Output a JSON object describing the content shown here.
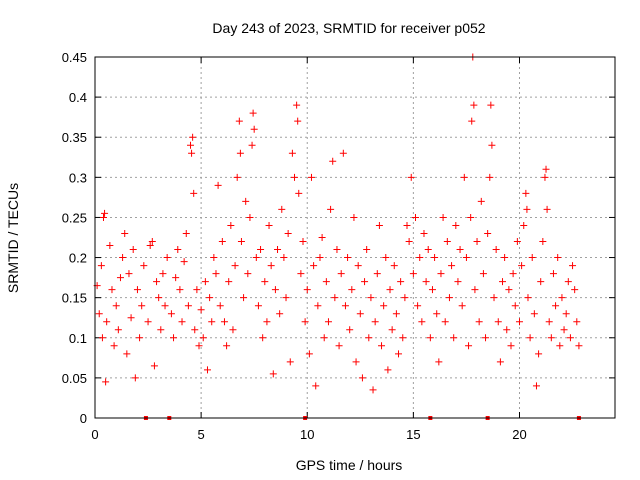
{
  "chart_data": {
    "type": "scatter",
    "title": "Day 243 of 2023, SRMTID for receiver p052",
    "xlabel": "GPS time / hours",
    "ylabel": "SRMTID / TECUs",
    "xlim": [
      0,
      24.5
    ],
    "ylim": [
      0,
      0.45
    ],
    "xticks": [
      0,
      5,
      10,
      15,
      20
    ],
    "yticks": [
      0,
      0.05,
      0.1,
      0.15,
      0.2,
      0.25,
      0.3,
      0.35,
      0.4,
      0.45
    ],
    "xtick_labels": [
      "0",
      "5",
      "10",
      "15",
      "20"
    ],
    "ytick_labels": [
      "0",
      "0.05",
      "0.1",
      "0.15",
      "0.2",
      "0.25",
      "0.3",
      "0.35",
      "0.4",
      "0.45"
    ],
    "grid": true,
    "marker": "+",
    "color": "#ff0000",
    "zero_marks_x": [
      2.4,
      3.5,
      9.9,
      15.8,
      18.5,
      22.8
    ],
    "series": [
      {
        "name": "SRMTID",
        "points": [
          [
            0.1,
            0.165
          ],
          [
            0.2,
            0.13
          ],
          [
            0.3,
            0.19
          ],
          [
            0.35,
            0.1
          ],
          [
            0.4,
            0.25
          ],
          [
            0.45,
            0.255
          ],
          [
            0.5,
            0.045
          ],
          [
            0.55,
            0.12
          ],
          [
            0.7,
            0.215
          ],
          [
            0.8,
            0.16
          ],
          [
            0.9,
            0.09
          ],
          [
            1.0,
            0.14
          ],
          [
            1.1,
            0.11
          ],
          [
            1.2,
            0.175
          ],
          [
            1.3,
            0.2
          ],
          [
            1.4,
            0.23
          ],
          [
            1.5,
            0.08
          ],
          [
            1.6,
            0.18
          ],
          [
            1.7,
            0.125
          ],
          [
            1.8,
            0.21
          ],
          [
            1.9,
            0.05
          ],
          [
            2.0,
            0.16
          ],
          [
            2.1,
            0.1
          ],
          [
            2.2,
            0.14
          ],
          [
            2.3,
            0.19
          ],
          [
            2.5,
            0.12
          ],
          [
            2.6,
            0.215
          ],
          [
            2.7,
            0.22
          ],
          [
            2.8,
            0.065
          ],
          [
            2.9,
            0.17
          ],
          [
            3.0,
            0.15
          ],
          [
            3.1,
            0.11
          ],
          [
            3.2,
            0.18
          ],
          [
            3.3,
            0.14
          ],
          [
            3.4,
            0.2
          ],
          [
            3.6,
            0.13
          ],
          [
            3.7,
            0.1
          ],
          [
            3.8,
            0.175
          ],
          [
            3.9,
            0.21
          ],
          [
            4.0,
            0.16
          ],
          [
            4.1,
            0.12
          ],
          [
            4.2,
            0.195
          ],
          [
            4.3,
            0.23
          ],
          [
            4.4,
            0.14
          ],
          [
            4.5,
            0.34
          ],
          [
            4.55,
            0.33
          ],
          [
            4.6,
            0.35
          ],
          [
            4.65,
            0.28
          ],
          [
            4.7,
            0.11
          ],
          [
            4.8,
            0.16
          ],
          [
            4.9,
            0.09
          ],
          [
            5.0,
            0.135
          ],
          [
            5.1,
            0.1
          ],
          [
            5.2,
            0.17
          ],
          [
            5.3,
            0.06
          ],
          [
            5.4,
            0.15
          ],
          [
            5.5,
            0.12
          ],
          [
            5.6,
            0.2
          ],
          [
            5.7,
            0.18
          ],
          [
            5.8,
            0.29
          ],
          [
            5.9,
            0.14
          ],
          [
            6.0,
            0.22
          ],
          [
            6.1,
            0.12
          ],
          [
            6.2,
            0.09
          ],
          [
            6.3,
            0.17
          ],
          [
            6.4,
            0.24
          ],
          [
            6.5,
            0.11
          ],
          [
            6.6,
            0.19
          ],
          [
            6.7,
            0.3
          ],
          [
            6.8,
            0.37
          ],
          [
            6.85,
            0.33
          ],
          [
            6.9,
            0.22
          ],
          [
            7.0,
            0.15
          ],
          [
            7.1,
            0.27
          ],
          [
            7.2,
            0.18
          ],
          [
            7.3,
            0.25
          ],
          [
            7.4,
            0.34
          ],
          [
            7.45,
            0.38
          ],
          [
            7.5,
            0.36
          ],
          [
            7.6,
            0.2
          ],
          [
            7.7,
            0.14
          ],
          [
            7.8,
            0.21
          ],
          [
            7.9,
            0.1
          ],
          [
            8.0,
            0.17
          ],
          [
            8.1,
            0.12
          ],
          [
            8.2,
            0.24
          ],
          [
            8.3,
            0.19
          ],
          [
            8.4,
            0.055
          ],
          [
            8.5,
            0.16
          ],
          [
            8.6,
            0.21
          ],
          [
            8.7,
            0.13
          ],
          [
            8.8,
            0.26
          ],
          [
            8.9,
            0.2
          ],
          [
            9.0,
            0.15
          ],
          [
            9.1,
            0.23
          ],
          [
            9.2,
            0.07
          ],
          [
            9.3,
            0.33
          ],
          [
            9.4,
            0.3
          ],
          [
            9.5,
            0.39
          ],
          [
            9.55,
            0.37
          ],
          [
            9.6,
            0.28
          ],
          [
            9.7,
            0.18
          ],
          [
            9.8,
            0.22
          ],
          [
            9.9,
            0.12
          ],
          [
            10.0,
            0.16
          ],
          [
            10.1,
            0.08
          ],
          [
            10.2,
            0.3
          ],
          [
            10.3,
            0.19
          ],
          [
            10.4,
            0.04
          ],
          [
            10.5,
            0.14
          ],
          [
            10.6,
            0.2
          ],
          [
            10.7,
            0.225
          ],
          [
            10.8,
            0.1
          ],
          [
            10.9,
            0.17
          ],
          [
            11.0,
            0.12
          ],
          [
            11.1,
            0.26
          ],
          [
            11.2,
            0.32
          ],
          [
            11.3,
            0.15
          ],
          [
            11.4,
            0.21
          ],
          [
            11.5,
            0.09
          ],
          [
            11.6,
            0.18
          ],
          [
            11.7,
            0.33
          ],
          [
            11.8,
            0.14
          ],
          [
            11.9,
            0.2
          ],
          [
            12.0,
            0.11
          ],
          [
            12.1,
            0.16
          ],
          [
            12.2,
            0.25
          ],
          [
            12.3,
            0.07
          ],
          [
            12.4,
            0.19
          ],
          [
            12.5,
            0.13
          ],
          [
            12.6,
            0.05
          ],
          [
            12.7,
            0.17
          ],
          [
            12.8,
            0.21
          ],
          [
            12.9,
            0.1
          ],
          [
            13.0,
            0.15
          ],
          [
            13.1,
            0.035
          ],
          [
            13.2,
            0.12
          ],
          [
            13.3,
            0.18
          ],
          [
            13.4,
            0.24
          ],
          [
            13.5,
            0.09
          ],
          [
            13.6,
            0.14
          ],
          [
            13.7,
            0.2
          ],
          [
            13.8,
            0.06
          ],
          [
            13.9,
            0.16
          ],
          [
            14.0,
            0.11
          ],
          [
            14.1,
            0.19
          ],
          [
            14.2,
            0.13
          ],
          [
            14.3,
            0.08
          ],
          [
            14.4,
            0.17
          ],
          [
            14.5,
            0.1
          ],
          [
            14.6,
            0.15
          ],
          [
            14.7,
            0.24
          ],
          [
            14.8,
            0.22
          ],
          [
            14.9,
            0.3
          ],
          [
            15.0,
            0.18
          ],
          [
            15.1,
            0.25
          ],
          [
            15.2,
            0.14
          ],
          [
            15.3,
            0.2
          ],
          [
            15.4,
            0.12
          ],
          [
            15.5,
            0.23
          ],
          [
            15.6,
            0.17
          ],
          [
            15.7,
            0.21
          ],
          [
            15.8,
            0.1
          ],
          [
            15.9,
            0.16
          ],
          [
            16.0,
            0.2
          ],
          [
            16.1,
            0.13
          ],
          [
            16.2,
            0.07
          ],
          [
            16.3,
            0.18
          ],
          [
            16.4,
            0.25
          ],
          [
            16.5,
            0.12
          ],
          [
            16.6,
            0.22
          ],
          [
            16.7,
            0.15
          ],
          [
            16.8,
            0.19
          ],
          [
            16.9,
            0.1
          ],
          [
            17.0,
            0.24
          ],
          [
            17.1,
            0.17
          ],
          [
            17.2,
            0.21
          ],
          [
            17.3,
            0.14
          ],
          [
            17.4,
            0.3
          ],
          [
            17.5,
            0.2
          ],
          [
            17.6,
            0.09
          ],
          [
            17.7,
            0.25
          ],
          [
            17.75,
            0.37
          ],
          [
            17.8,
            0.45
          ],
          [
            17.85,
            0.39
          ],
          [
            17.9,
            0.16
          ],
          [
            18.0,
            0.22
          ],
          [
            18.1,
            0.12
          ],
          [
            18.2,
            0.27
          ],
          [
            18.3,
            0.18
          ],
          [
            18.4,
            0.1
          ],
          [
            18.5,
            0.23
          ],
          [
            18.6,
            0.3
          ],
          [
            18.65,
            0.39
          ],
          [
            18.7,
            0.34
          ],
          [
            18.8,
            0.15
          ],
          [
            18.9,
            0.21
          ],
          [
            19.0,
            0.12
          ],
          [
            19.1,
            0.07
          ],
          [
            19.2,
            0.17
          ],
          [
            19.3,
            0.2
          ],
          [
            19.4,
            0.11
          ],
          [
            19.5,
            0.16
          ],
          [
            19.6,
            0.09
          ],
          [
            19.7,
            0.18
          ],
          [
            19.8,
            0.14
          ],
          [
            19.9,
            0.22
          ],
          [
            20.0,
            0.12
          ],
          [
            20.1,
            0.19
          ],
          [
            20.2,
            0.24
          ],
          [
            20.3,
            0.28
          ],
          [
            20.35,
            0.26
          ],
          [
            20.4,
            0.15
          ],
          [
            20.5,
            0.1
          ],
          [
            20.6,
            0.2
          ],
          [
            20.7,
            0.13
          ],
          [
            20.8,
            0.04
          ],
          [
            20.9,
            0.08
          ],
          [
            21.0,
            0.17
          ],
          [
            21.1,
            0.22
          ],
          [
            21.2,
            0.3
          ],
          [
            21.25,
            0.31
          ],
          [
            21.3,
            0.26
          ],
          [
            21.4,
            0.12
          ],
          [
            21.5,
            0.1
          ],
          [
            21.6,
            0.18
          ],
          [
            21.7,
            0.14
          ],
          [
            21.8,
            0.2
          ],
          [
            21.9,
            0.09
          ],
          [
            22.0,
            0.15
          ],
          [
            22.1,
            0.11
          ],
          [
            22.2,
            0.13
          ],
          [
            22.3,
            0.17
          ],
          [
            22.4,
            0.1
          ],
          [
            22.5,
            0.19
          ],
          [
            22.6,
            0.16
          ],
          [
            22.7,
            0.12
          ],
          [
            22.8,
            0.09
          ]
        ]
      }
    ]
  }
}
